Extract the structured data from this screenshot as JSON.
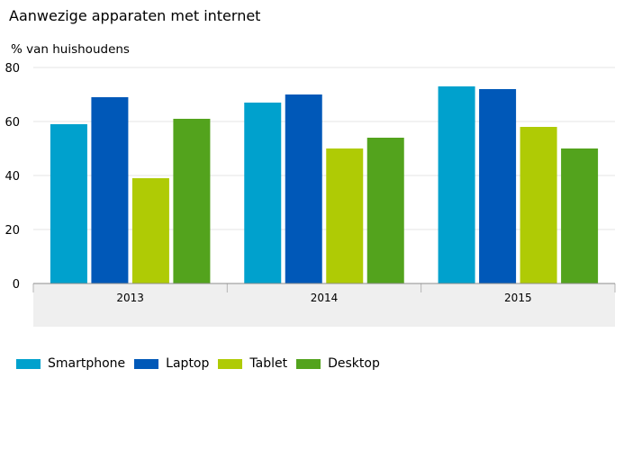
{
  "title": "Aanwezige apparaten met internet",
  "chart_data": {
    "type": "bar",
    "title": "Aanwezige apparaten met internet",
    "ylabel": "% van huishoudens",
    "xlabel": "",
    "ylim": [
      0,
      80
    ],
    "yticks": [
      0,
      20,
      40,
      60,
      80
    ],
    "grid": true,
    "legend_position": "bottom",
    "categories": [
      "2013",
      "2014",
      "2015"
    ],
    "series": [
      {
        "name": "Smartphone",
        "color": "#00a1cd",
        "values": [
          59,
          67,
          73
        ]
      },
      {
        "name": "Laptop",
        "color": "#0058b8",
        "values": [
          69,
          70,
          72
        ]
      },
      {
        "name": "Tablet",
        "color": "#afcb05",
        "values": [
          39,
          50,
          58
        ]
      },
      {
        "name": "Desktop",
        "color": "#53a31d",
        "values": [
          61,
          54,
          50
        ]
      }
    ]
  }
}
